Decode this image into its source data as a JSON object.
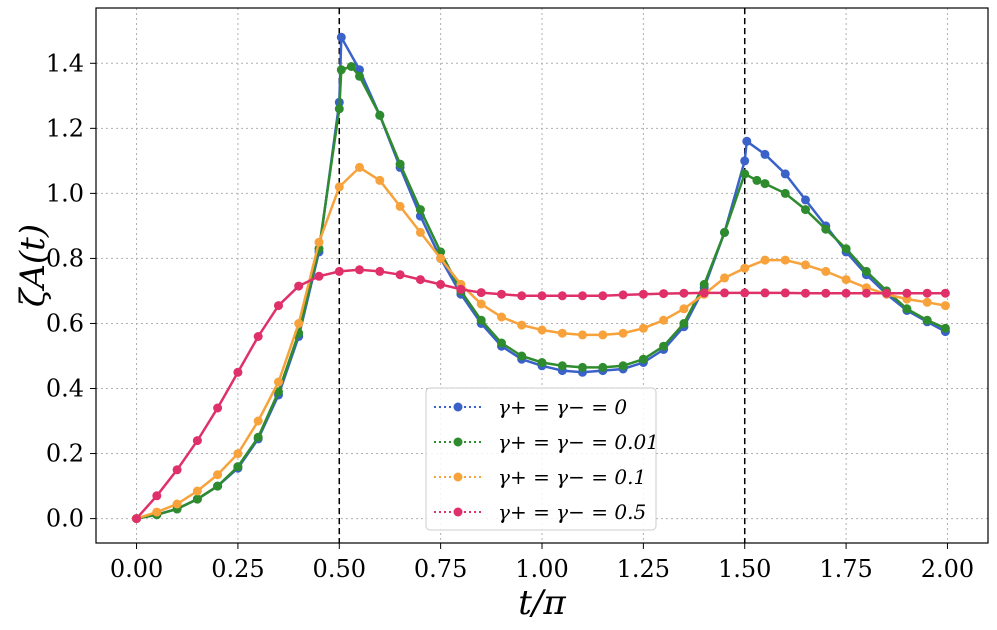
{
  "chart_data": {
    "type": "line",
    "xlabel": "t/π",
    "ylabel": "ζA(t)",
    "xlim": [
      -0.1,
      2.1
    ],
    "ylim": [
      -0.075,
      1.57
    ],
    "xticks": [
      0.0,
      0.25,
      0.5,
      0.75,
      1.0,
      1.25,
      1.5,
      1.75,
      2.0
    ],
    "xtick_labels": [
      "0.00",
      "0.25",
      "0.50",
      "0.75",
      "1.00",
      "1.25",
      "1.50",
      "1.75",
      "2.00"
    ],
    "yticks": [
      0.0,
      0.2,
      0.4,
      0.6,
      0.8,
      1.0,
      1.2,
      1.4
    ],
    "ytick_labels": [
      "0.0",
      "0.2",
      "0.4",
      "0.6",
      "0.8",
      "1.0",
      "1.2",
      "1.4"
    ],
    "grid": true,
    "grid_style": "dotted",
    "vlines": [
      0.5,
      1.5
    ],
    "legend_position": "lower-center",
    "markers": "circle",
    "series": [
      {
        "name": "γ+ = γ− = 0",
        "color": "#3a62c8",
        "points": [
          [
            0.0,
            0.0
          ],
          [
            0.05,
            0.012
          ],
          [
            0.1,
            0.03
          ],
          [
            0.15,
            0.06
          ],
          [
            0.2,
            0.1
          ],
          [
            0.25,
            0.155
          ],
          [
            0.3,
            0.245
          ],
          [
            0.35,
            0.38
          ],
          [
            0.4,
            0.56
          ],
          [
            0.45,
            0.82
          ],
          [
            0.5,
            1.28
          ],
          [
            0.505,
            1.48
          ],
          [
            0.55,
            1.38
          ],
          [
            0.6,
            1.24
          ],
          [
            0.65,
            1.08
          ],
          [
            0.7,
            0.93
          ],
          [
            0.75,
            0.8
          ],
          [
            0.8,
            0.69
          ],
          [
            0.85,
            0.6
          ],
          [
            0.9,
            0.53
          ],
          [
            0.95,
            0.49
          ],
          [
            1.0,
            0.47
          ],
          [
            1.05,
            0.455
          ],
          [
            1.1,
            0.45
          ],
          [
            1.15,
            0.455
          ],
          [
            1.2,
            0.46
          ],
          [
            1.25,
            0.48
          ],
          [
            1.3,
            0.52
          ],
          [
            1.35,
            0.59
          ],
          [
            1.4,
            0.71
          ],
          [
            1.45,
            0.88
          ],
          [
            1.5,
            1.1
          ],
          [
            1.505,
            1.16
          ],
          [
            1.55,
            1.12
          ],
          [
            1.6,
            1.06
          ],
          [
            1.65,
            0.98
          ],
          [
            1.7,
            0.9
          ],
          [
            1.75,
            0.82
          ],
          [
            1.8,
            0.75
          ],
          [
            1.85,
            0.69
          ],
          [
            1.9,
            0.64
          ],
          [
            1.95,
            0.605
          ],
          [
            1.995,
            0.575
          ]
        ]
      },
      {
        "name": "γ+ = γ− = 0.01",
        "color": "#2e8b2e",
        "points": [
          [
            0.0,
            0.0
          ],
          [
            0.05,
            0.012
          ],
          [
            0.1,
            0.03
          ],
          [
            0.15,
            0.06
          ],
          [
            0.2,
            0.1
          ],
          [
            0.25,
            0.16
          ],
          [
            0.3,
            0.25
          ],
          [
            0.35,
            0.39
          ],
          [
            0.4,
            0.57
          ],
          [
            0.45,
            0.83
          ],
          [
            0.5,
            1.26
          ],
          [
            0.505,
            1.38
          ],
          [
            0.53,
            1.39
          ],
          [
            0.55,
            1.36
          ],
          [
            0.6,
            1.24
          ],
          [
            0.65,
            1.09
          ],
          [
            0.7,
            0.95
          ],
          [
            0.75,
            0.82
          ],
          [
            0.8,
            0.7
          ],
          [
            0.85,
            0.61
          ],
          [
            0.9,
            0.54
          ],
          [
            0.95,
            0.5
          ],
          [
            1.0,
            0.48
          ],
          [
            1.05,
            0.47
          ],
          [
            1.1,
            0.465
          ],
          [
            1.15,
            0.465
          ],
          [
            1.2,
            0.47
          ],
          [
            1.25,
            0.49
          ],
          [
            1.3,
            0.53
          ],
          [
            1.35,
            0.6
          ],
          [
            1.4,
            0.72
          ],
          [
            1.45,
            0.88
          ],
          [
            1.5,
            1.06
          ],
          [
            1.53,
            1.04
          ],
          [
            1.55,
            1.03
          ],
          [
            1.6,
            1.0
          ],
          [
            1.65,
            0.95
          ],
          [
            1.7,
            0.89
          ],
          [
            1.75,
            0.83
          ],
          [
            1.8,
            0.76
          ],
          [
            1.85,
            0.7
          ],
          [
            1.9,
            0.645
          ],
          [
            1.95,
            0.61
          ],
          [
            1.995,
            0.585
          ]
        ]
      },
      {
        "name": "γ+ = γ− = 0.1",
        "color": "#f7a23a",
        "points": [
          [
            0.0,
            0.0
          ],
          [
            0.05,
            0.02
          ],
          [
            0.1,
            0.045
          ],
          [
            0.15,
            0.085
          ],
          [
            0.2,
            0.135
          ],
          [
            0.25,
            0.2
          ],
          [
            0.3,
            0.3
          ],
          [
            0.35,
            0.42
          ],
          [
            0.4,
            0.6
          ],
          [
            0.45,
            0.85
          ],
          [
            0.5,
            1.02
          ],
          [
            0.55,
            1.08
          ],
          [
            0.6,
            1.04
          ],
          [
            0.65,
            0.96
          ],
          [
            0.7,
            0.88
          ],
          [
            0.75,
            0.8
          ],
          [
            0.8,
            0.72
          ],
          [
            0.85,
            0.66
          ],
          [
            0.9,
            0.62
          ],
          [
            0.95,
            0.595
          ],
          [
            1.0,
            0.58
          ],
          [
            1.05,
            0.57
          ],
          [
            1.1,
            0.565
          ],
          [
            1.15,
            0.565
          ],
          [
            1.2,
            0.57
          ],
          [
            1.25,
            0.585
          ],
          [
            1.3,
            0.61
          ],
          [
            1.35,
            0.645
          ],
          [
            1.4,
            0.69
          ],
          [
            1.45,
            0.74
          ],
          [
            1.5,
            0.77
          ],
          [
            1.55,
            0.795
          ],
          [
            1.6,
            0.795
          ],
          [
            1.65,
            0.78
          ],
          [
            1.7,
            0.76
          ],
          [
            1.75,
            0.735
          ],
          [
            1.8,
            0.71
          ],
          [
            1.85,
            0.69
          ],
          [
            1.9,
            0.675
          ],
          [
            1.95,
            0.665
          ],
          [
            1.995,
            0.655
          ]
        ]
      },
      {
        "name": "γ+ = γ− = 0.5",
        "color": "#e0306a",
        "points": [
          [
            0.0,
            0.0
          ],
          [
            0.05,
            0.07
          ],
          [
            0.1,
            0.15
          ],
          [
            0.15,
            0.24
          ],
          [
            0.2,
            0.34
          ],
          [
            0.25,
            0.45
          ],
          [
            0.3,
            0.56
          ],
          [
            0.35,
            0.655
          ],
          [
            0.4,
            0.715
          ],
          [
            0.45,
            0.745
          ],
          [
            0.5,
            0.76
          ],
          [
            0.55,
            0.765
          ],
          [
            0.6,
            0.76
          ],
          [
            0.65,
            0.75
          ],
          [
            0.7,
            0.735
          ],
          [
            0.75,
            0.72
          ],
          [
            0.8,
            0.705
          ],
          [
            0.85,
            0.695
          ],
          [
            0.9,
            0.69
          ],
          [
            0.95,
            0.685
          ],
          [
            1.0,
            0.685
          ],
          [
            1.05,
            0.685
          ],
          [
            1.1,
            0.685
          ],
          [
            1.15,
            0.685
          ],
          [
            1.2,
            0.688
          ],
          [
            1.25,
            0.69
          ],
          [
            1.3,
            0.692
          ],
          [
            1.35,
            0.693
          ],
          [
            1.4,
            0.694
          ],
          [
            1.45,
            0.694
          ],
          [
            1.5,
            0.694
          ],
          [
            1.55,
            0.694
          ],
          [
            1.6,
            0.694
          ],
          [
            1.65,
            0.693
          ],
          [
            1.7,
            0.693
          ],
          [
            1.75,
            0.693
          ],
          [
            1.8,
            0.693
          ],
          [
            1.85,
            0.693
          ],
          [
            1.9,
            0.693
          ],
          [
            1.95,
            0.693
          ],
          [
            1.995,
            0.693
          ]
        ]
      }
    ]
  }
}
